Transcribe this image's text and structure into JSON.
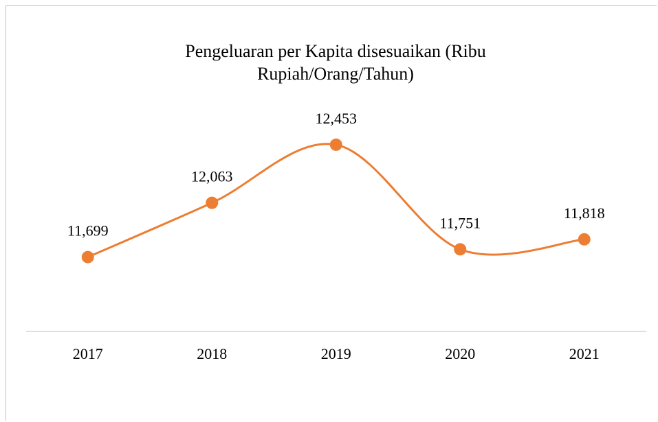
{
  "chart_data": {
    "type": "line",
    "title": "Pengeluaran per Kapita disesuaikan (Ribu Rupiah/Orang/Tahun)",
    "categories": [
      "2017",
      "2018",
      "2019",
      "2020",
      "2021"
    ],
    "series": [
      {
        "name": "Pengeluaran per Kapita",
        "color": "#ED7D31",
        "values": [
          11699,
          12063,
          12453,
          11751,
          11818
        ],
        "value_labels": [
          "11,699",
          "12,063",
          "12,453",
          "11,751",
          "11,818"
        ]
      }
    ],
    "ylim": [
      11200,
      12600
    ],
    "smooth": true
  }
}
